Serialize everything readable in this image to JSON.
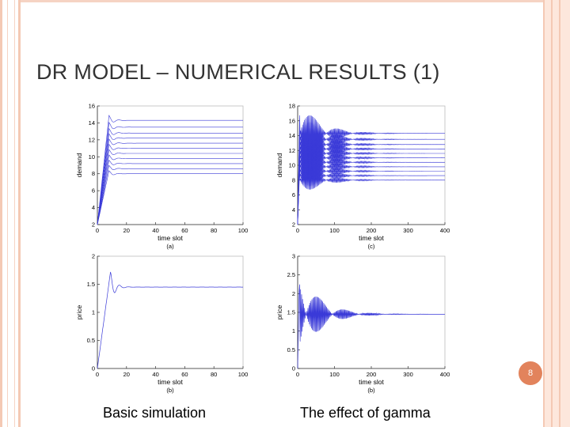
{
  "slide": {
    "title": "DR MODEL – NUMERICAL RESULTS (1)",
    "page_number": "8",
    "caption_left": "Basic simulation",
    "caption_right": "The effect of gamma",
    "colors": {
      "frame": "#f4c9b4",
      "badge": "#e2835c",
      "series": "#3a3ad8"
    }
  },
  "chart_data": [
    {
      "type": "line",
      "panel": "(a)",
      "xlabel": "time slot",
      "ylabel": "demand",
      "xlim": [
        0,
        100
      ],
      "ylim": [
        2,
        16
      ],
      "xticks": [
        0,
        20,
        40,
        60,
        80,
        100
      ],
      "yticks": [
        2,
        4,
        6,
        8,
        10,
        12,
        14,
        16
      ],
      "series_count": 11,
      "start_value": 2,
      "steady_values": [
        8,
        8.6,
        9.2,
        9.8,
        10.4,
        11,
        11.6,
        12.2,
        12.8,
        13.5,
        14.3
      ],
      "overshoot_peak": 14.9
    },
    {
      "type": "line",
      "panel": "(c)",
      "xlabel": "time slot",
      "ylabel": "demand",
      "xlim": [
        0,
        400
      ],
      "ylim": [
        2,
        18
      ],
      "xticks": [
        0,
        100,
        200,
        300,
        400
      ],
      "yticks": [
        2,
        4,
        6,
        8,
        10,
        12,
        14,
        16,
        18
      ],
      "series_count": 11,
      "start_value": 2,
      "steady_values": [
        8,
        8.6,
        9.2,
        9.8,
        10.4,
        11,
        11.6,
        12.2,
        12.8,
        13.5,
        14.3
      ],
      "oscillation_amplitude": 4.5
    },
    {
      "type": "line",
      "panel": "(b)",
      "xlabel": "time slot",
      "ylabel": "price",
      "xlim": [
        0,
        100
      ],
      "ylim": [
        0,
        2
      ],
      "xticks": [
        0,
        20,
        40,
        60,
        80,
        100
      ],
      "yticks": [
        0,
        0.5,
        1,
        1.5,
        2
      ],
      "steady_value": 1.45,
      "overshoot_peak": 1.72
    },
    {
      "type": "line",
      "panel": "(b)",
      "xlabel": "time slot",
      "ylabel": "price",
      "xlim": [
        0,
        400
      ],
      "ylim": [
        0,
        3
      ],
      "xticks": [
        0,
        100,
        200,
        300,
        400
      ],
      "yticks": [
        0,
        0.5,
        1,
        1.5,
        2,
        2.5,
        3
      ],
      "steady_value": 1.45,
      "oscillation_peak": 2.6
    }
  ]
}
